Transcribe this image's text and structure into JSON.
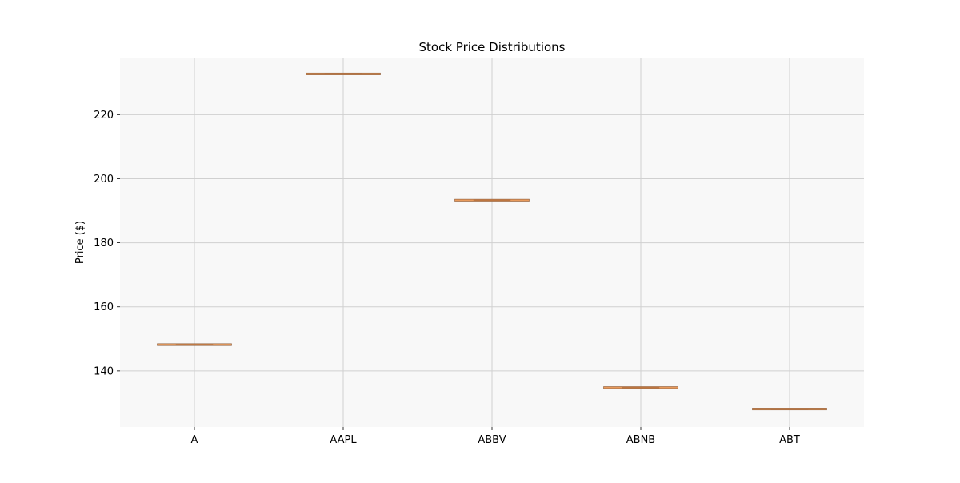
{
  "chart_data": {
    "type": "box",
    "title": "Stock Price Distributions",
    "xlabel": "",
    "ylabel": "Price ($)",
    "categories": [
      "A",
      "AAPL",
      "ABBV",
      "ABNB",
      "ABT"
    ],
    "values": [
      148.2,
      232.7,
      193.3,
      134.8,
      128.1
    ],
    "ylim": [
      122.5,
      237.8
    ],
    "yticks": [
      140,
      160,
      180,
      200,
      220
    ],
    "grid": true,
    "legend": "none",
    "colors": {
      "plot_background": "#f8f8f8",
      "grid": "#d0d0d0",
      "box": "#e89a5c",
      "box_edge": "#8a5a38",
      "median": "#b8703c"
    }
  }
}
